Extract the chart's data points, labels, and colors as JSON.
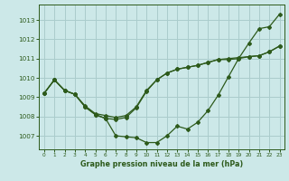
{
  "xlabel": "Graphe pression niveau de la mer (hPa)",
  "background_color": "#cce8e8",
  "grid_color": "#aacccc",
  "line_color": "#2d5a1b",
  "ylim": [
    1006.3,
    1013.8
  ],
  "xlim": [
    -0.5,
    23.5
  ],
  "x": [
    0,
    1,
    2,
    3,
    4,
    5,
    6,
    7,
    8,
    9,
    10,
    11,
    12,
    13,
    14,
    15,
    16,
    17,
    18,
    19,
    20,
    21,
    22,
    23
  ],
  "line1": [
    1009.2,
    1009.9,
    1009.35,
    1009.15,
    1008.55,
    1008.15,
    1008.05,
    1007.95,
    1008.05,
    1008.5,
    1009.35,
    1009.9,
    1010.25,
    1010.45,
    1010.55,
    1010.65,
    1010.8,
    1010.95,
    1011.0,
    1011.05,
    1011.1,
    1011.15,
    1011.35,
    1011.65
  ],
  "line2": [
    1009.2,
    1009.9,
    1009.35,
    1009.15,
    1008.5,
    1008.1,
    1007.9,
    1007.0,
    1006.95,
    1006.9,
    1006.65,
    1006.65,
    1007.0,
    1007.5,
    1007.35,
    1007.7,
    1008.3,
    1009.1,
    1010.05,
    1011.0,
    1011.8,
    1012.55,
    1012.65,
    1013.3
  ],
  "line3": [
    1009.2,
    1009.9,
    1009.35,
    1009.15,
    1008.5,
    1008.1,
    1007.9,
    1007.85,
    1007.95,
    1008.45,
    1009.3,
    1009.9,
    1010.25,
    1010.45,
    1010.55,
    1010.65,
    1010.8,
    1010.95,
    1010.95,
    1011.0,
    1011.1,
    1011.15,
    1011.35,
    1011.65
  ],
  "yticks": [
    1007,
    1008,
    1009,
    1010,
    1011,
    1012,
    1013
  ],
  "xticks": [
    0,
    1,
    2,
    3,
    4,
    5,
    6,
    7,
    8,
    9,
    10,
    11,
    12,
    13,
    14,
    15,
    16,
    17,
    18,
    19,
    20,
    21,
    22,
    23
  ]
}
